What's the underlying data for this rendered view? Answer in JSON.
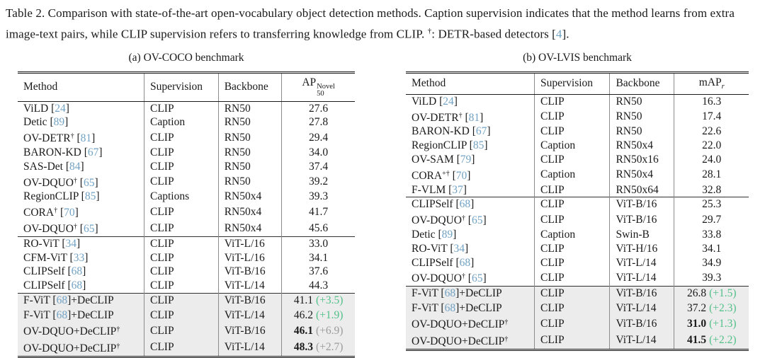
{
  "colors": {
    "citation_blue": "#72a2c4",
    "delta_green": "#53c08a",
    "delta_gray": "#9b9b9b",
    "highlight_bg": "#ececec"
  },
  "caption": {
    "part1": "Table 2. Comparison with state-of-the-art open-vocabulary object detection methods. Caption supervision indicates that the method learns from extra image-text pairs, while CLIP supervision refers to transferring knowledge from CLIP. ",
    "dagger": "†",
    "part2": ": DETR-based detectors ",
    "cite_open": "[",
    "cite_num": "4",
    "text_end": "]."
  },
  "tables": [
    {
      "id": "a",
      "subtitle": "(a) OV-COCO benchmark",
      "columns": [
        "Method",
        "Supervision",
        "Backbone"
      ],
      "metric": {
        "base": "AP",
        "sup": "Novel",
        "sub": "50",
        "sub_italic": false
      },
      "groups": [
        {
          "highlight": false,
          "rows": [
            {
              "method": {
                "name": "ViLD",
                "dagger": "",
                "cite": "24",
                "suffix": "",
                "suffix_dagger": ""
              },
              "supervision": "CLIP",
              "backbone": "RN50",
              "value": "27.6",
              "bold": false,
              "delta": "",
              "delta_color": ""
            },
            {
              "method": {
                "name": "Detic",
                "dagger": "",
                "cite": "89",
                "suffix": "",
                "suffix_dagger": ""
              },
              "supervision": "Caption",
              "backbone": "RN50",
              "value": "27.8",
              "bold": false,
              "delta": "",
              "delta_color": ""
            },
            {
              "method": {
                "name": "OV-DETR",
                "dagger": "†",
                "cite": "81",
                "suffix": "",
                "suffix_dagger": ""
              },
              "supervision": "CLIP",
              "backbone": "RN50",
              "value": "29.4",
              "bold": false,
              "delta": "",
              "delta_color": ""
            },
            {
              "method": {
                "name": "BARON-KD",
                "dagger": "",
                "cite": "67",
                "suffix": "",
                "suffix_dagger": ""
              },
              "supervision": "CLIP",
              "backbone": "RN50",
              "value": "34.0",
              "bold": false,
              "delta": "",
              "delta_color": ""
            },
            {
              "method": {
                "name": "SAS-Det",
                "dagger": "",
                "cite": "84",
                "suffix": "",
                "suffix_dagger": ""
              },
              "supervision": "CLIP",
              "backbone": "RN50",
              "value": "37.4",
              "bold": false,
              "delta": "",
              "delta_color": ""
            },
            {
              "method": {
                "name": "OV-DQUO",
                "dagger": "†",
                "cite": "65",
                "suffix": "",
                "suffix_dagger": ""
              },
              "supervision": "CLIP",
              "backbone": "RN50",
              "value": "39.2",
              "bold": false,
              "delta": "",
              "delta_color": ""
            },
            {
              "method": {
                "name": "RegionCLIP",
                "dagger": "",
                "cite": "85",
                "suffix": "",
                "suffix_dagger": ""
              },
              "supervision": "Captions",
              "backbone": "RN50x4",
              "value": "39.3",
              "bold": false,
              "delta": "",
              "delta_color": ""
            },
            {
              "method": {
                "name": "CORA",
                "dagger": "†",
                "cite": "70",
                "suffix": "",
                "suffix_dagger": ""
              },
              "supervision": "CLIP",
              "backbone": "RN50x4",
              "value": "41.7",
              "bold": false,
              "delta": "",
              "delta_color": ""
            },
            {
              "method": {
                "name": "OV-DQUO",
                "dagger": "†",
                "cite": "65",
                "suffix": "",
                "suffix_dagger": ""
              },
              "supervision": "CLIP",
              "backbone": "RN50x4",
              "value": "45.6",
              "bold": false,
              "delta": "",
              "delta_color": ""
            }
          ]
        },
        {
          "highlight": false,
          "rows": [
            {
              "method": {
                "name": "RO-ViT",
                "dagger": "",
                "cite": "34",
                "suffix": "",
                "suffix_dagger": ""
              },
              "supervision": "CLIP",
              "backbone": "ViT-L/16",
              "value": "33.0",
              "bold": false,
              "delta": "",
              "delta_color": ""
            },
            {
              "method": {
                "name": "CFM-ViT",
                "dagger": "",
                "cite": "33",
                "suffix": "",
                "suffix_dagger": ""
              },
              "supervision": "CLIP",
              "backbone": "ViT-L/16",
              "value": "34.1",
              "bold": false,
              "delta": "",
              "delta_color": ""
            },
            {
              "method": {
                "name": "CLIPSelf",
                "dagger": "",
                "cite": "68",
                "suffix": "",
                "suffix_dagger": ""
              },
              "supervision": "CLIP",
              "backbone": "ViT-B/16",
              "value": "37.6",
              "bold": false,
              "delta": "",
              "delta_color": ""
            },
            {
              "method": {
                "name": "CLIPSelf",
                "dagger": "",
                "cite": "68",
                "suffix": "",
                "suffix_dagger": ""
              },
              "supervision": "CLIP",
              "backbone": "ViT-L/14",
              "value": "44.3",
              "bold": false,
              "delta": "",
              "delta_color": ""
            }
          ]
        },
        {
          "highlight": true,
          "rows": [
            {
              "method": {
                "name": "F-ViT",
                "dagger": "",
                "cite": "68",
                "suffix": "+DeCLIP",
                "suffix_dagger": ""
              },
              "supervision": "CLIP",
              "backbone": "ViT-B/16",
              "value": "41.1",
              "bold": false,
              "delta": "(+3.5)",
              "delta_color": "green"
            },
            {
              "method": {
                "name": "F-ViT",
                "dagger": "",
                "cite": "68",
                "suffix": "+DeCLIP",
                "suffix_dagger": ""
              },
              "supervision": "CLIP",
              "backbone": "ViT-L/14",
              "value": "46.2",
              "bold": false,
              "delta": "(+1.9)",
              "delta_color": "green"
            },
            {
              "method": {
                "name": "OV-DQUO+DeCLIP",
                "dagger": "†",
                "cite": "",
                "suffix": "",
                "suffix_dagger": ""
              },
              "supervision": "CLIP",
              "backbone": "ViT-B/16",
              "value": "46.1",
              "bold": true,
              "delta": "(+6.9)",
              "delta_color": "gray"
            },
            {
              "method": {
                "name": "OV-DQUO+DeCLIP",
                "dagger": "†",
                "cite": "",
                "suffix": "",
                "suffix_dagger": ""
              },
              "supervision": "CLIP",
              "backbone": "ViT-L/14",
              "value": "48.3",
              "bold": true,
              "delta": "(+2.7)",
              "delta_color": "gray"
            }
          ]
        }
      ]
    },
    {
      "id": "b",
      "subtitle": "(b) OV-LVIS benchmark",
      "columns": [
        "Method",
        "Supervision",
        "Backbone"
      ],
      "metric": {
        "base": "mAP",
        "sup": "",
        "sub": "r",
        "sub_italic": true
      },
      "groups": [
        {
          "highlight": false,
          "rows": [
            {
              "method": {
                "name": "ViLD",
                "dagger": "",
                "cite": "24",
                "suffix": "",
                "suffix_dagger": ""
              },
              "supervision": "CLIP",
              "backbone": "RN50",
              "value": "16.3",
              "bold": false,
              "delta": "",
              "delta_color": ""
            },
            {
              "method": {
                "name": "OV-DETR",
                "dagger": "†",
                "cite": "81",
                "suffix": "",
                "suffix_dagger": ""
              },
              "supervision": "CLIP",
              "backbone": "RN50",
              "value": "17.4",
              "bold": false,
              "delta": "",
              "delta_color": ""
            },
            {
              "method": {
                "name": "BARON-KD",
                "dagger": "",
                "cite": "67",
                "suffix": "",
                "suffix_dagger": ""
              },
              "supervision": "CLIP",
              "backbone": "RN50",
              "value": "22.6",
              "bold": false,
              "delta": "",
              "delta_color": ""
            },
            {
              "method": {
                "name": "RegionCLIP",
                "dagger": "",
                "cite": "85",
                "suffix": "",
                "suffix_dagger": ""
              },
              "supervision": "Caption",
              "backbone": "RN50x4",
              "value": "22.0",
              "bold": false,
              "delta": "",
              "delta_color": ""
            },
            {
              "method": {
                "name": "OV-SAM",
                "dagger": "",
                "cite": "79",
                "suffix": "",
                "suffix_dagger": ""
              },
              "supervision": "CLIP",
              "backbone": "RN50x16",
              "value": "24.0",
              "bold": false,
              "delta": "",
              "delta_color": ""
            },
            {
              "method": {
                "name": "CORA",
                "dagger": "+†",
                "cite": "70",
                "suffix": "",
                "suffix_dagger": ""
              },
              "supervision": "Caption",
              "backbone": "RN50x4",
              "value": "28.1",
              "bold": false,
              "delta": "",
              "delta_color": ""
            },
            {
              "method": {
                "name": "F-VLM",
                "dagger": "",
                "cite": "37",
                "suffix": "",
                "suffix_dagger": ""
              },
              "supervision": "CLIP",
              "backbone": "RN50x64",
              "value": "32.8",
              "bold": false,
              "delta": "",
              "delta_color": ""
            }
          ]
        },
        {
          "highlight": false,
          "rows": [
            {
              "method": {
                "name": "CLIPSelf",
                "dagger": "",
                "cite": "68",
                "suffix": "",
                "suffix_dagger": ""
              },
              "supervision": "CLIP",
              "backbone": "ViT-B/16",
              "value": "25.3",
              "bold": false,
              "delta": "",
              "delta_color": ""
            },
            {
              "method": {
                "name": "OV-DQUO",
                "dagger": "†",
                "cite": "65",
                "suffix": "",
                "suffix_dagger": ""
              },
              "supervision": "CLIP",
              "backbone": "ViT-B/16",
              "value": "29.7",
              "bold": false,
              "delta": "",
              "delta_color": ""
            },
            {
              "method": {
                "name": "Detic",
                "dagger": "",
                "cite": "89",
                "suffix": "",
                "suffix_dagger": ""
              },
              "supervision": "Caption",
              "backbone": "Swin-B",
              "value": "33.8",
              "bold": false,
              "delta": "",
              "delta_color": ""
            },
            {
              "method": {
                "name": "RO-ViT",
                "dagger": "",
                "cite": "34",
                "suffix": "",
                "suffix_dagger": ""
              },
              "supervision": "CLIP",
              "backbone": "ViT-H/16",
              "value": "34.1",
              "bold": false,
              "delta": "",
              "delta_color": ""
            },
            {
              "method": {
                "name": "CLIPSelf",
                "dagger": "",
                "cite": "68",
                "suffix": "",
                "suffix_dagger": ""
              },
              "supervision": "CLIP",
              "backbone": "ViT-L/14",
              "value": "34.9",
              "bold": false,
              "delta": "",
              "delta_color": ""
            },
            {
              "method": {
                "name": "OV-DQUO",
                "dagger": "†",
                "cite": "65",
                "suffix": "",
                "suffix_dagger": ""
              },
              "supervision": "CLIP",
              "backbone": "ViT-L/14",
              "value": "39.3",
              "bold": false,
              "delta": "",
              "delta_color": ""
            }
          ]
        },
        {
          "highlight": true,
          "rows": [
            {
              "method": {
                "name": "F-ViT",
                "dagger": "",
                "cite": "68",
                "suffix": "+DeCLIP",
                "suffix_dagger": ""
              },
              "supervision": "CLIP",
              "backbone": "ViT-B/16",
              "value": "26.8",
              "bold": false,
              "delta": "(+1.5)",
              "delta_color": "green"
            },
            {
              "method": {
                "name": "F-ViT",
                "dagger": "",
                "cite": "68",
                "suffix": "+DeCLIP",
                "suffix_dagger": ""
              },
              "supervision": "CLIP",
              "backbone": "ViT-L/14",
              "value": "37.2",
              "bold": false,
              "delta": "(+2.3)",
              "delta_color": "green"
            },
            {
              "method": {
                "name": "OV-DQUO+DeCLIP",
                "dagger": "†",
                "cite": "",
                "suffix": "",
                "suffix_dagger": ""
              },
              "supervision": "CLIP",
              "backbone": "ViT-B/16",
              "value": "31.0",
              "bold": true,
              "delta": "(+1.3)",
              "delta_color": "green"
            },
            {
              "method": {
                "name": "OV-DQUO+DeCLIP",
                "dagger": "†",
                "cite": "",
                "suffix": "",
                "suffix_dagger": ""
              },
              "supervision": "CLIP",
              "backbone": "ViT-L/14",
              "value": "41.5",
              "bold": true,
              "delta": "(+2.2)",
              "delta_color": "green"
            }
          ]
        }
      ]
    }
  ]
}
